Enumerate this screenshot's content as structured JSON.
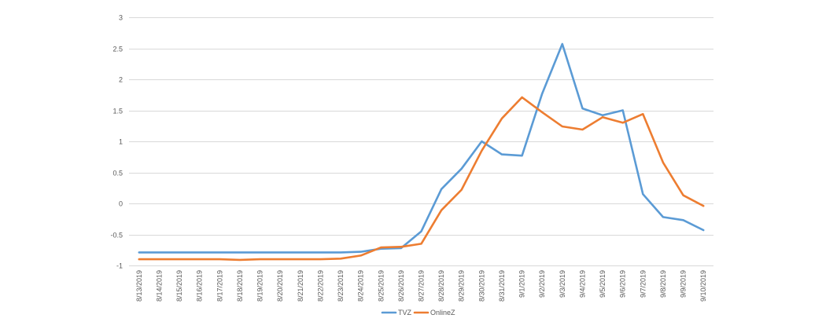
{
  "chart_data": {
    "type": "line",
    "title": "",
    "xlabel": "",
    "ylabel": "",
    "ylim": [
      -1,
      3
    ],
    "yticks": [
      -1,
      -0.5,
      0,
      0.5,
      1,
      1.5,
      2,
      2.5,
      3
    ],
    "ytick_labels": [
      "-1",
      "-0.5",
      "0",
      "0.5",
      "1",
      "1.5",
      "2",
      "2.5",
      "3"
    ],
    "grid": "horizontal",
    "legend_position": "bottom",
    "categories": [
      "8/13/2019",
      "8/14/2019",
      "8/15/2019",
      "8/16/2019",
      "8/17/2019",
      "8/18/2019",
      "8/19/2019",
      "8/20/2019",
      "8/21/2019",
      "8/22/2019",
      "8/23/2019",
      "8/24/2019",
      "8/25/2019",
      "8/26/2019",
      "8/27/2019",
      "8/28/2019",
      "8/29/2019",
      "8/30/2019",
      "8/31/2019",
      "9/1/2019",
      "9/2/2019",
      "9/3/2019",
      "9/4/2019",
      "9/5/2019",
      "9/6/2019",
      "9/7/2019",
      "9/8/2019",
      "9/9/2019",
      "9/10/2019"
    ],
    "series": [
      {
        "name": "TVZ",
        "color": "#5b9bd5",
        "values": [
          -0.79,
          -0.79,
          -0.79,
          -0.79,
          -0.79,
          -0.79,
          -0.79,
          -0.79,
          -0.79,
          -0.79,
          -0.79,
          -0.78,
          -0.73,
          -0.72,
          -0.45,
          0.23,
          0.56,
          1.0,
          0.79,
          0.77,
          1.77,
          2.57,
          1.53,
          1.42,
          1.5,
          0.15,
          -0.22,
          -0.27,
          -0.43
        ]
      },
      {
        "name": "OnlineZ",
        "color": "#ed7d31",
        "values": [
          -0.9,
          -0.9,
          -0.9,
          -0.9,
          -0.9,
          -0.91,
          -0.9,
          -0.9,
          -0.9,
          -0.9,
          -0.89,
          -0.84,
          -0.71,
          -0.7,
          -0.65,
          -0.11,
          0.22,
          0.85,
          1.37,
          1.71,
          1.47,
          1.24,
          1.19,
          1.39,
          1.3,
          1.44,
          0.66,
          0.13,
          -0.04
        ]
      }
    ]
  }
}
